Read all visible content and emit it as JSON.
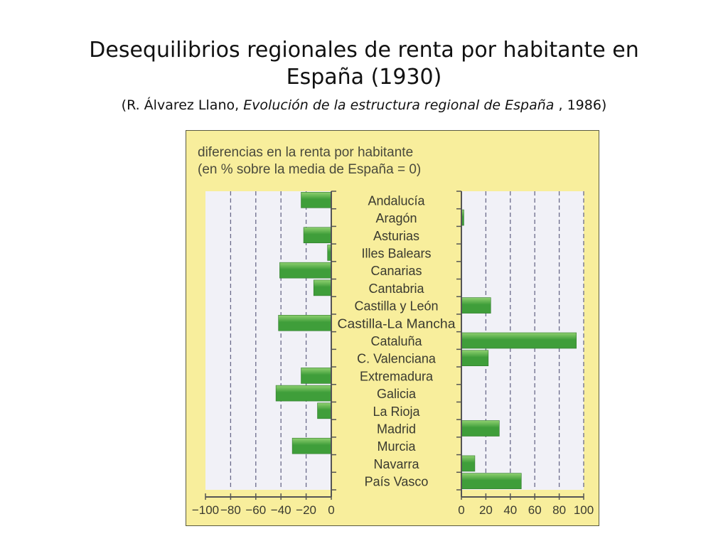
{
  "slide": {
    "title_line1": "Desequilibrios regionales de renta por habitante en",
    "title_line2": "España (1930)",
    "subtitle_prefix": "(R. Álvarez Llano, ",
    "subtitle_work": "Evolución de la estructura regional de España",
    "subtitle_suffix": " , 1986)"
  },
  "colors": {
    "panel_background": "#f8ee9c",
    "plot_background": "#f1f1f7",
    "bar_fill": "#3f9e3a",
    "bar_highlight": "#8fd070",
    "axis": "#555555",
    "gridline": "#6b6b8a",
    "label_text": "#3a3a30"
  },
  "chart_data": {
    "type": "bar",
    "orientation": "horizontal",
    "title": "diferencias en la renta por habitante",
    "subtitle": "(en % sobre la media de España = 0)",
    "categories": [
      "Andalucía",
      "Aragón",
      "Asturias",
      "Illes Balears",
      "Canarias",
      "Cantabria",
      "Castilla y León",
      "Castilla-La Mancha",
      "Cataluña",
      "C. Valenciana",
      "Extremadura",
      "Galicia",
      "La Rioja",
      "Madrid",
      "Murcia",
      "Navarra",
      "País Vasco"
    ],
    "values": [
      -24,
      2,
      -22,
      -3,
      -41,
      -14,
      24,
      -42,
      94,
      22,
      -24,
      -44,
      -11,
      31,
      -31,
      11,
      49
    ],
    "negative_axis": {
      "xlim": [
        -100,
        0
      ],
      "ticks": [
        -100,
        -80,
        -60,
        -40,
        -20,
        0
      ],
      "tick_labels": [
        "−100",
        "−80",
        "−60",
        "−40",
        "−20",
        "0"
      ]
    },
    "positive_axis": {
      "xlim": [
        0,
        100
      ],
      "ticks": [
        0,
        20,
        40,
        60,
        80,
        100
      ],
      "tick_labels": [
        "0",
        "20",
        "40",
        "60",
        "80",
        "100"
      ]
    },
    "grid": true,
    "grid_style": "dashed vertical",
    "legend": "none",
    "category_labels_position": "center"
  }
}
